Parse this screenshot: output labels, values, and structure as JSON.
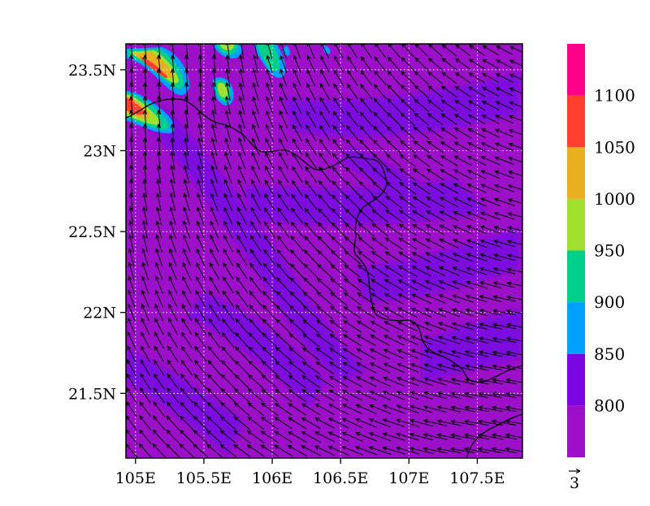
{
  "map": {
    "lon_min": 104.93,
    "lon_max": 107.83,
    "lat_min": 21.1,
    "lat_max": 23.66,
    "x_ticks": [
      {
        "value": 105.0,
        "label": "105E"
      },
      {
        "value": 105.5,
        "label": "105.5E"
      },
      {
        "value": 106.0,
        "label": "106E"
      },
      {
        "value": 106.5,
        "label": "106.5E"
      },
      {
        "value": 107.0,
        "label": "107E"
      },
      {
        "value": 107.5,
        "label": "107.5E"
      }
    ],
    "y_ticks": [
      {
        "value": 21.5,
        "label": "21.5N"
      },
      {
        "value": 22.0,
        "label": "22N"
      },
      {
        "value": 22.5,
        "label": "22.5N"
      },
      {
        "value": 23.0,
        "label": "23N"
      },
      {
        "value": 23.5,
        "label": "23.5N"
      }
    ],
    "grid": true,
    "background_color": "#9b10c8",
    "wind_field": "mostly east-southeasterly flow turning northerly toward the northwest corner",
    "high_value_patches": [
      {
        "lon": 105.05,
        "lat": 23.2,
        "rank": "1100+"
      },
      {
        "lon": 105.15,
        "lat": 23.45,
        "rank": "1050-1100"
      },
      {
        "lon": 105.35,
        "lat": 23.3,
        "rank": "950-1000"
      },
      {
        "lon": 105.55,
        "lat": 23.62,
        "rank": "950-1000"
      },
      {
        "lon": 105.93,
        "lat": 23.55,
        "rank": "900-950"
      }
    ]
  },
  "colorbar": {
    "tick_labels": [
      "800",
      "850",
      "900",
      "950",
      "1000",
      "1050",
      "1100"
    ],
    "bins": [
      {
        "range": "< 800",
        "color": "#9b10c8"
      },
      {
        "range": "800-850",
        "color": "#7a07e2"
      },
      {
        "range": "850-900",
        "color": "#00a0ff"
      },
      {
        "range": "900-950",
        "color": "#00d08c"
      },
      {
        "range": "950-1000",
        "color": "#a0e030"
      },
      {
        "range": "1000-1050",
        "color": "#e8b020"
      },
      {
        "range": "1050-1100",
        "color": "#ff4030"
      },
      {
        "range": "> 1100",
        "color": "#ff0088"
      }
    ]
  },
  "reference_vector": {
    "label": "3"
  }
}
